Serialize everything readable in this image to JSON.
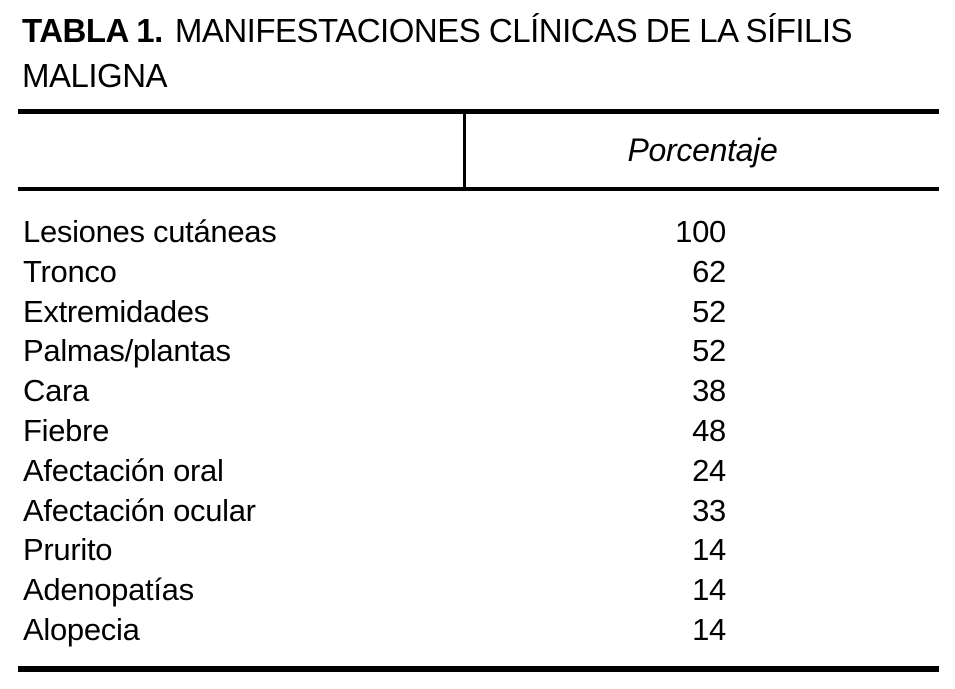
{
  "title": {
    "label": "TABLA 1.",
    "text": "MANIFESTACIONES CLÍNICAS DE LA SÍFILIS MALIGNA"
  },
  "table": {
    "column_header": "Porcentaje",
    "rows": [
      {
        "label": "Lesiones cutáneas",
        "value": "100"
      },
      {
        "label": "Tronco",
        "value": "62"
      },
      {
        "label": "Extremidades",
        "value": "52"
      },
      {
        "label": "Palmas/plantas",
        "value": "52"
      },
      {
        "label": "Cara",
        "value": "38"
      },
      {
        "label": "Fiebre",
        "value": "48"
      },
      {
        "label": "Afectación oral",
        "value": "24"
      },
      {
        "label": "Afectación ocular",
        "value": "33"
      },
      {
        "label": "Prurito",
        "value": "14"
      },
      {
        "label": "Adenopatías",
        "value": "14"
      },
      {
        "label": "Alopecia",
        "value": "14"
      }
    ]
  },
  "colors": {
    "text": "#000000",
    "background": "#ffffff",
    "rule": "#000000"
  },
  "chart_data": {
    "type": "table",
    "title": "TABLA 1. MANIFESTACIONES CLÍNICAS DE LA SÍFILIS MALIGNA",
    "columns": [
      "",
      "Porcentaje"
    ],
    "rows": [
      [
        "Lesiones cutáneas",
        100
      ],
      [
        "Tronco",
        62
      ],
      [
        "Extremidades",
        52
      ],
      [
        "Palmas/plantas",
        52
      ],
      [
        "Cara",
        38
      ],
      [
        "Fiebre",
        48
      ],
      [
        "Afectación oral",
        24
      ],
      [
        "Afectación ocular",
        33
      ],
      [
        "Prurito",
        14
      ],
      [
        "Adenopatías",
        14
      ],
      [
        "Alopecia",
        14
      ]
    ]
  }
}
